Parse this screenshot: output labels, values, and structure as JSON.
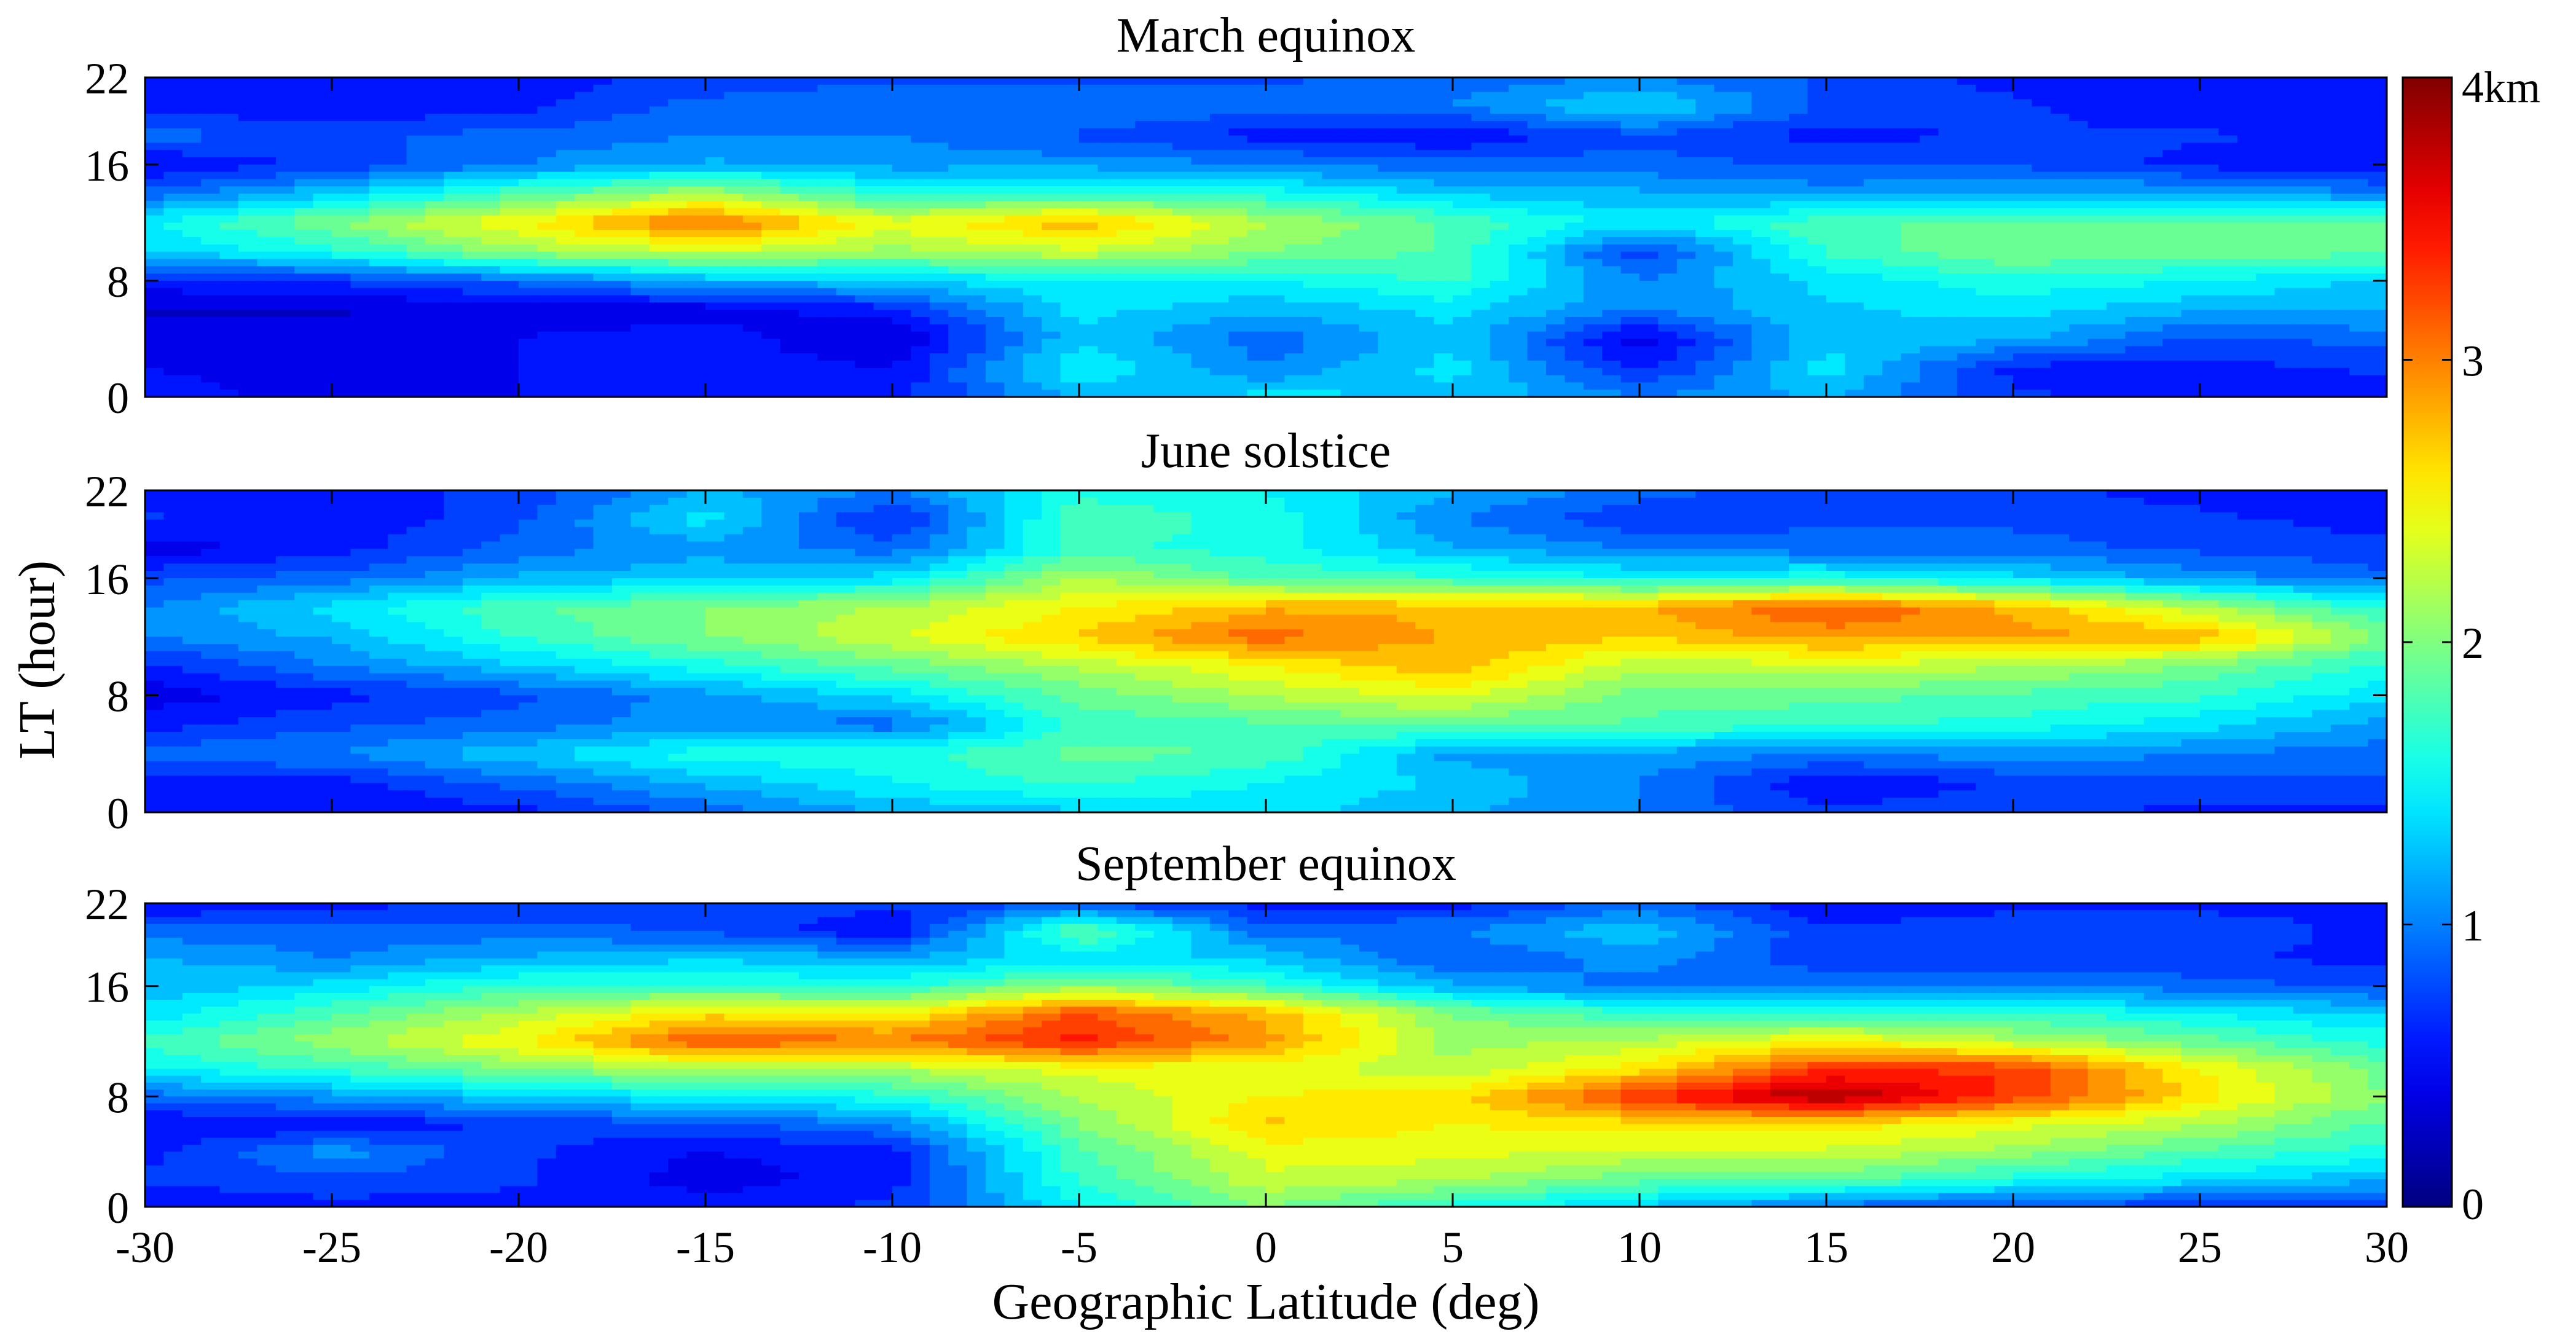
{
  "chart_data": {
    "type": "heatmap",
    "xlabel": "Geographic Latitude (deg)",
    "ylabel": "LT (hour)",
    "xlim": [
      -30,
      30
    ],
    "ylim": [
      0,
      22
    ],
    "x": [
      -30,
      -25,
      -20,
      -15,
      -10,
      -5,
      0,
      5,
      10,
      15,
      20,
      25,
      30
    ],
    "y": [
      0,
      2,
      4,
      6,
      8,
      10,
      12,
      14,
      16,
      18,
      20,
      22
    ],
    "x_ticks": [
      "-30",
      "-25",
      "-20",
      "-15",
      "-10",
      "-5",
      "0",
      "5",
      "10",
      "15",
      "20",
      "25",
      "30"
    ],
    "y_ticks": [
      {
        "value": 0,
        "label": "0"
      },
      {
        "value": 8,
        "label": "8"
      },
      {
        "value": 16,
        "label": "16"
      },
      {
        "value": 22,
        "label": "22"
      }
    ],
    "colorbar": {
      "range": [
        0,
        4
      ],
      "ticks": [
        {
          "value": 0,
          "label": "0"
        },
        {
          "value": 1,
          "label": "1"
        },
        {
          "value": 2,
          "label": "2"
        },
        {
          "value": 3,
          "label": "3"
        },
        {
          "value": 4,
          "label": "4km"
        }
      ],
      "colormap": "jet"
    },
    "panels": [
      {
        "title": "March equinox",
        "z": [
          [
            0.6,
            0.4,
            0.5,
            0.5,
            0.6,
            1.2,
            1.4,
            1.3,
            1.0,
            1.2,
            0.7,
            0.6,
            0.6
          ],
          [
            0.5,
            0.4,
            0.5,
            0.6,
            0.5,
            1.5,
            1.0,
            1.4,
            0.6,
            1.4,
            0.6,
            0.6,
            0.7
          ],
          [
            0.4,
            0.5,
            0.5,
            0.6,
            0.3,
            1.3,
            0.9,
            1.3,
            0.4,
            1.3,
            1.2,
            0.8,
            0.9
          ],
          [
            0.3,
            0.3,
            0.4,
            0.4,
            0.6,
            1.4,
            1.2,
            1.4,
            1.0,
            1.3,
            1.4,
            1.2,
            1.2
          ],
          [
            0.6,
            0.7,
            0.9,
            1.2,
            1.3,
            1.5,
            1.5,
            1.7,
            1.0,
            1.4,
            1.6,
            1.5,
            1.3
          ],
          [
            1.3,
            1.6,
            2.1,
            2.3,
            2.1,
            2.3,
            2.0,
            1.8,
            0.7,
            1.7,
            2.0,
            1.9,
            1.9
          ],
          [
            1.5,
            2.0,
            2.5,
            3.1,
            2.4,
            2.8,
            2.2,
            1.8,
            1.4,
            1.8,
            1.9,
            1.9,
            1.9
          ],
          [
            0.9,
            1.3,
            1.8,
            2.2,
            1.6,
            1.7,
            1.6,
            1.3,
            1.2,
            1.1,
            1.2,
            1.2,
            1.0
          ],
          [
            0.5,
            0.7,
            1.0,
            1.2,
            1.1,
            1.1,
            1.0,
            0.9,
            0.9,
            0.8,
            0.8,
            0.6,
            0.5
          ],
          [
            0.9,
            0.8,
            0.9,
            1.0,
            1.0,
            0.8,
            0.6,
            0.5,
            0.8,
            0.6,
            0.7,
            0.7,
            0.6
          ],
          [
            0.6,
            0.5,
            0.6,
            0.9,
            1.0,
            1.0,
            0.9,
            1.0,
            1.4,
            0.8,
            0.7,
            0.5,
            0.6
          ],
          [
            0.5,
            0.5,
            0.6,
            0.7,
            0.8,
            0.8,
            0.8,
            0.9,
            1.0,
            0.8,
            0.6,
            0.5,
            0.5
          ]
        ]
      },
      {
        "title": "June solstice",
        "z": [
          [
            0.5,
            0.5,
            0.6,
            0.9,
            1.2,
            1.3,
            1.4,
            1.2,
            1.0,
            0.7,
            0.8,
            0.6,
            0.6
          ],
          [
            0.6,
            0.6,
            0.9,
            1.2,
            1.5,
            1.7,
            1.5,
            1.3,
            1.0,
            0.5,
            0.7,
            0.8,
            0.8
          ],
          [
            0.9,
            1.0,
            1.3,
            1.6,
            1.6,
            1.9,
            1.8,
            1.1,
            1.1,
            1.0,
            1.1,
            1.0,
            0.9
          ],
          [
            0.6,
            0.8,
            0.9,
            1.1,
            0.9,
            1.7,
            1.8,
            1.9,
            1.8,
            1.7,
            1.6,
            1.4,
            1.1
          ],
          [
            0.4,
            0.6,
            0.8,
            1.1,
            1.4,
            1.9,
            2.2,
            2.4,
            1.9,
            1.9,
            1.8,
            1.7,
            1.4
          ],
          [
            0.6,
            1.0,
            1.3,
            1.6,
            1.9,
            2.2,
            2.5,
            2.8,
            2.2,
            2.3,
            2.2,
            2.0,
            1.6
          ],
          [
            1.0,
            1.2,
            1.7,
            2.0,
            2.3,
            2.7,
            3.1,
            2.8,
            2.7,
            2.9,
            2.9,
            2.8,
            2.0
          ],
          [
            1.0,
            1.4,
            1.8,
            2.0,
            2.2,
            2.5,
            2.8,
            2.8,
            2.8,
            3.2,
            2.8,
            2.2,
            1.6
          ],
          [
            0.8,
            0.9,
            1.2,
            1.3,
            1.4,
            2.2,
            1.8,
            1.7,
            1.5,
            1.6,
            1.4,
            1.1,
            0.9
          ],
          [
            0.4,
            0.6,
            0.9,
            1.1,
            0.9,
            1.7,
            1.6,
            1.2,
            1.0,
            0.9,
            0.9,
            0.8,
            0.7
          ],
          [
            0.7,
            0.5,
            0.8,
            1.4,
            0.6,
            1.8,
            1.6,
            1.0,
            0.7,
            0.8,
            0.8,
            0.7,
            0.6
          ],
          [
            0.6,
            0.6,
            0.7,
            1.2,
            1.0,
            1.6,
            1.5,
            1.2,
            0.9,
            0.7,
            0.7,
            0.6,
            0.6
          ]
        ]
      },
      {
        "title": "September equinox",
        "z": [
          [
            0.5,
            0.6,
            0.6,
            0.6,
            0.7,
            1.5,
            2.0,
            1.6,
            1.3,
            0.9,
            0.8,
            0.7,
            0.7
          ],
          [
            0.7,
            0.8,
            0.7,
            0.4,
            0.6,
            1.7,
            2.3,
            2.2,
            1.9,
            1.9,
            1.6,
            1.4,
            1.2
          ],
          [
            0.6,
            1.1,
            0.7,
            0.5,
            0.6,
            1.8,
            2.4,
            2.4,
            2.3,
            2.3,
            2.1,
            1.8,
            1.6
          ],
          [
            0.5,
            0.5,
            0.7,
            0.8,
            1.0,
            2.0,
            2.7,
            2.5,
            2.6,
            2.6,
            2.4,
            2.2,
            1.8
          ],
          [
            0.9,
            1.1,
            1.3,
            1.5,
            1.6,
            2.2,
            2.5,
            2.6,
            3.3,
            3.9,
            3.3,
            2.6,
            2.0
          ],
          [
            1.5,
            1.7,
            2.0,
            2.2,
            2.2,
            2.4,
            2.4,
            2.2,
            2.6,
            3.3,
            3.3,
            2.5,
            1.9
          ],
          [
            1.7,
            2.1,
            2.5,
            3.2,
            3.0,
            3.4,
            2.9,
            2.1,
            2.2,
            2.5,
            2.2,
            1.9,
            1.6
          ],
          [
            1.4,
            1.8,
            2.2,
            2.6,
            2.5,
            3.2,
            2.8,
            2.0,
            1.7,
            1.7,
            1.7,
            1.5,
            1.3
          ],
          [
            1.2,
            1.4,
            1.7,
            1.7,
            1.6,
            2.1,
            1.7,
            1.2,
            0.9,
            1.0,
            1.0,
            0.9,
            0.8
          ],
          [
            1.2,
            1.0,
            1.2,
            1.3,
            1.2,
            1.4,
            1.3,
            0.8,
            1.1,
            0.7,
            0.7,
            0.7,
            0.6
          ],
          [
            0.9,
            0.9,
            0.9,
            0.8,
            0.5,
            1.9,
            0.9,
            1.0,
            1.3,
            0.7,
            0.8,
            0.8,
            0.6
          ],
          [
            0.5,
            0.6,
            0.7,
            0.8,
            0.7,
            0.8,
            0.6,
            0.6,
            0.9,
            0.5,
            0.6,
            0.6,
            0.6
          ]
        ]
      }
    ]
  }
}
